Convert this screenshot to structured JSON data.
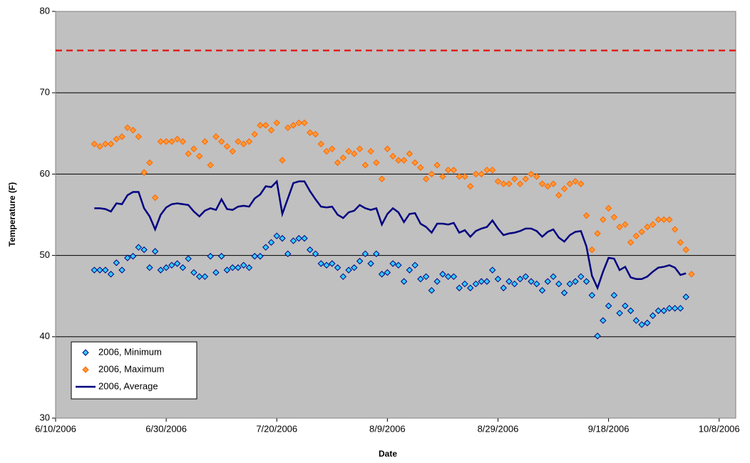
{
  "chart_data": {
    "type": "scatter-line",
    "x_label": "Date",
    "y_label": "Temperature (F)",
    "x": [
      "6/17/2006",
      "6/18/2006",
      "6/19/2006",
      "6/20/2006",
      "6/21/2006",
      "6/22/2006",
      "6/23/2006",
      "6/24/2006",
      "6/25/2006",
      "6/26/2006",
      "6/27/2006",
      "6/28/2006",
      "6/29/2006",
      "6/30/2006",
      "7/1/2006",
      "7/2/2006",
      "7/3/2006",
      "7/4/2006",
      "7/5/2006",
      "7/6/2006",
      "7/7/2006",
      "7/8/2006",
      "7/9/2006",
      "7/10/2006",
      "7/11/2006",
      "7/12/2006",
      "7/13/2006",
      "7/14/2006",
      "7/15/2006",
      "7/16/2006",
      "7/17/2006",
      "7/18/2006",
      "7/19/2006",
      "7/20/2006",
      "7/21/2006",
      "7/22/2006",
      "7/23/2006",
      "7/24/2006",
      "7/25/2006",
      "7/26/2006",
      "7/27/2006",
      "7/28/2006",
      "7/29/2006",
      "7/30/2006",
      "7/31/2006",
      "8/1/2006",
      "8/2/2006",
      "8/3/2006",
      "8/4/2006",
      "8/5/2006",
      "8/6/2006",
      "8/7/2006",
      "8/8/2006",
      "8/9/2006",
      "8/10/2006",
      "8/11/2006",
      "8/12/2006",
      "8/13/2006",
      "8/14/2006",
      "8/15/2006",
      "8/16/2006",
      "8/17/2006",
      "8/18/2006",
      "8/19/2006",
      "8/20/2006",
      "8/21/2006",
      "8/22/2006",
      "8/23/2006",
      "8/24/2006",
      "8/25/2006",
      "8/26/2006",
      "8/27/2006",
      "8/28/2006",
      "8/29/2006",
      "8/30/2006",
      "8/31/2006",
      "9/1/2006",
      "9/2/2006",
      "9/3/2006",
      "9/4/2006",
      "9/5/2006",
      "9/6/2006",
      "9/7/2006",
      "9/8/2006",
      "9/9/2006",
      "9/10/2006",
      "9/11/2006",
      "9/12/2006",
      "9/13/2006",
      "9/14/2006",
      "9/15/2006",
      "9/16/2006",
      "9/17/2006",
      "9/18/2006",
      "9/19/2006",
      "9/20/2006",
      "9/21/2006",
      "9/22/2006",
      "9/23/2006",
      "9/24/2006",
      "9/25/2006",
      "9/26/2006",
      "9/27/2006",
      "9/28/2006",
      "9/29/2006",
      "9/30/2006",
      "10/1/2006",
      "10/2/2006",
      "10/3/2006"
    ],
    "series": [
      {
        "name": "2006, Minimum",
        "style": "marker",
        "color": "#33ccff",
        "edge": "#000080",
        "values": [
          48.2,
          48.2,
          48.2,
          47.7,
          49.1,
          48.2,
          49.7,
          49.9,
          51.0,
          50.7,
          48.5,
          50.5,
          48.2,
          48.5,
          48.8,
          49.0,
          48.5,
          49.6,
          47.9,
          47.4,
          47.4,
          49.9,
          47.9,
          49.9,
          48.2,
          48.5,
          48.5,
          48.8,
          48.5,
          49.9,
          49.9,
          51.0,
          51.6,
          52.4,
          52.1,
          50.2,
          51.8,
          52.1,
          52.1,
          50.7,
          50.2,
          49.0,
          48.8,
          49.0,
          48.5,
          47.4,
          48.2,
          48.5,
          49.3,
          50.2,
          49.0,
          50.2,
          47.7,
          47.9,
          49.0,
          48.8,
          46.8,
          48.2,
          48.8,
          47.1,
          47.4,
          45.7,
          46.8,
          47.7,
          47.4,
          47.4,
          46.0,
          46.5,
          46.0,
          46.5,
          46.8,
          46.8,
          48.2,
          47.1,
          46.0,
          46.8,
          46.5,
          47.1,
          47.4,
          46.8,
          46.5,
          45.7,
          46.8,
          47.4,
          46.5,
          45.4,
          46.5,
          46.8,
          47.4,
          46.8,
          45.1,
          40.1,
          42.0,
          43.8,
          45.1,
          42.9,
          43.8,
          43.2,
          42.0,
          41.5,
          41.7,
          42.6,
          43.2,
          43.2,
          43.5,
          43.5,
          43.5,
          44.9,
          null
        ]
      },
      {
        "name": "2006, Maximum",
        "style": "marker",
        "color": "#ff9933",
        "edge": "#ff6600",
        "values": [
          63.7,
          63.4,
          63.7,
          63.7,
          64.3,
          64.6,
          65.7,
          65.4,
          64.6,
          60.2,
          61.4,
          57.1,
          64.0,
          64.0,
          64.0,
          64.3,
          64.0,
          62.5,
          63.1,
          62.2,
          64.0,
          61.1,
          64.6,
          64.0,
          63.4,
          62.8,
          64.0,
          63.7,
          64.0,
          64.9,
          66.0,
          66.0,
          65.4,
          66.3,
          61.7,
          65.7,
          66.0,
          66.3,
          66.3,
          65.1,
          64.9,
          63.7,
          62.8,
          63.1,
          61.4,
          62.0,
          62.8,
          62.5,
          63.1,
          61.1,
          62.8,
          61.4,
          59.4,
          63.1,
          62.2,
          61.7,
          61.7,
          62.5,
          61.4,
          60.8,
          59.4,
          60.0,
          61.1,
          59.7,
          60.5,
          60.5,
          59.7,
          59.7,
          58.5,
          60.0,
          60.0,
          60.5,
          60.5,
          59.1,
          58.8,
          58.8,
          59.4,
          58.8,
          59.4,
          60.0,
          59.7,
          58.8,
          58.5,
          58.8,
          57.4,
          58.2,
          58.8,
          59.1,
          58.8,
          54.9,
          50.7,
          52.7,
          54.4,
          55.8,
          54.7,
          53.5,
          53.8,
          51.6,
          52.4,
          52.9,
          53.5,
          53.8,
          54.4,
          54.4,
          54.4,
          53.2,
          51.6,
          50.7,
          47.7
        ]
      },
      {
        "name": "2006, Average",
        "style": "line",
        "color": "#000080",
        "values": [
          55.8,
          55.8,
          55.7,
          55.4,
          56.4,
          56.3,
          57.4,
          57.8,
          57.8,
          55.8,
          54.8,
          53.2,
          55.0,
          55.9,
          56.3,
          56.4,
          56.3,
          56.2,
          55.4,
          54.8,
          55.5,
          55.8,
          55.6,
          56.9,
          55.7,
          55.6,
          56.0,
          56.1,
          56.0,
          57.0,
          57.5,
          58.5,
          58.4,
          59.1,
          55.1,
          57.0,
          58.9,
          59.1,
          59.1,
          57.9,
          56.9,
          56.0,
          55.9,
          56.0,
          55.0,
          54.6,
          55.3,
          55.5,
          56.2,
          55.8,
          55.6,
          55.8,
          53.8,
          55.1,
          55.8,
          55.3,
          54.1,
          55.1,
          55.2,
          53.9,
          53.5,
          52.8,
          53.9,
          53.9,
          53.8,
          54.0,
          52.8,
          53.1,
          52.3,
          53.0,
          53.3,
          53.5,
          54.3,
          53.3,
          52.5,
          52.7,
          52.8,
          53.0,
          53.3,
          53.3,
          53.0,
          52.3,
          52.9,
          53.2,
          52.2,
          51.7,
          52.5,
          52.9,
          53.0,
          51.1,
          47.5,
          46.0,
          48.0,
          49.7,
          49.6,
          48.2,
          48.6,
          47.3,
          47.1,
          47.1,
          47.4,
          48.0,
          48.5,
          48.6,
          48.8,
          48.5,
          47.6,
          47.8,
          null
        ]
      }
    ],
    "reference_line": {
      "value": 75.2,
      "color": "#e0201c",
      "dashed": true
    },
    "xlim": [
      "6/10/2006",
      "10/11/2006"
    ],
    "xticks": [
      "6/10/2006",
      "6/30/2006",
      "7/20/2006",
      "8/9/2006",
      "8/29/2006",
      "9/18/2006",
      "10/8/2006"
    ],
    "ylim": [
      30,
      80
    ],
    "yticks": [
      30,
      40,
      50,
      60,
      70,
      80
    ],
    "grid": true,
    "legend": "lower left",
    "background": "#c0c0c0"
  }
}
